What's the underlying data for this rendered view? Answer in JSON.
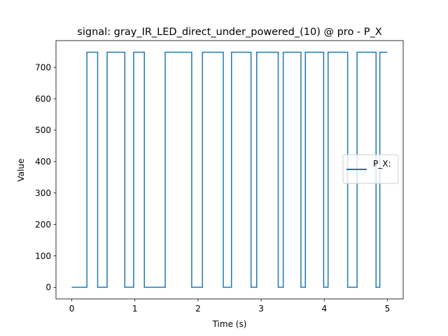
{
  "chart_data": {
    "type": "line",
    "title": "signal: gray_IR_LED_direct_under_powered_(10) @ pro - P_X",
    "xlabel": "Time (s)",
    "ylabel": "Value",
    "xlim": [
      -0.25,
      5.25
    ],
    "ylim": [
      -37,
      785
    ],
    "xticks": [
      0,
      1,
      2,
      3,
      4,
      5
    ],
    "xtick_labels": [
      "0",
      "1",
      "2",
      "3",
      "4",
      "5"
    ],
    "yticks": [
      0,
      100,
      200,
      300,
      400,
      500,
      600,
      700
    ],
    "ytick_labels": [
      "0",
      "100",
      "200",
      "300",
      "400",
      "500",
      "600",
      "700"
    ],
    "grid": false,
    "legend_position": "center-right",
    "series": [
      {
        "name": "P_X:",
        "color": "#1f77b4",
        "step": true,
        "x": [
          0,
          0.24,
          0.24,
          0.41,
          0.41,
          0.56,
          0.56,
          0.84,
          0.84,
          0.98,
          0.98,
          1.15,
          1.15,
          1.48,
          1.48,
          1.9,
          1.9,
          2.07,
          2.07,
          2.4,
          2.4,
          2.53,
          2.53,
          2.84,
          2.84,
          2.93,
          2.93,
          3.27,
          3.27,
          3.35,
          3.35,
          3.63,
          3.63,
          3.7,
          3.7,
          3.99,
          3.99,
          4.06,
          4.06,
          4.37,
          4.37,
          4.52,
          4.52,
          4.82,
          4.82,
          4.88,
          4.88,
          5.0
        ],
        "y": [
          0,
          0,
          748,
          748,
          0,
          0,
          748,
          748,
          0,
          0,
          748,
          748,
          0,
          0,
          748,
          748,
          0,
          0,
          748,
          748,
          0,
          0,
          748,
          748,
          0,
          0,
          748,
          748,
          0,
          0,
          748,
          748,
          0,
          0,
          748,
          748,
          0,
          0,
          748,
          748,
          0,
          0,
          748,
          748,
          0,
          0,
          748,
          748
        ]
      }
    ]
  }
}
